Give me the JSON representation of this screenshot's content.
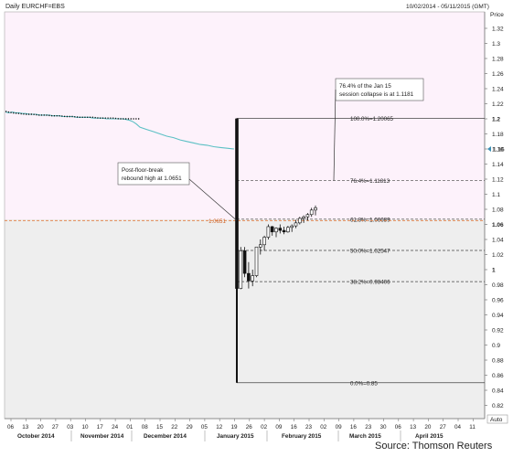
{
  "chart_data": {
    "type": "line",
    "title": "Daily EURCHF=EBS",
    "date_range": "10/02/2014 - 05/11/2015 (GMT)",
    "ylabel": "Price",
    "ylim": [
      0.8,
      1.34
    ],
    "y_ticks": [
      "1.32",
      "1.3",
      "1.28",
      "1.26",
      "1.24",
      "1.22",
      "1.2",
      "1.18",
      "1.16",
      "1.14",
      "1.12",
      "1.1",
      "1.08",
      "1.06",
      "1.04",
      "1.02",
      "1",
      "0.98",
      "0.96",
      "0.94",
      "0.92",
      "0.9",
      "0.88",
      "0.86",
      "0.84",
      "0.82"
    ],
    "bold_ticks": [
      "1.2",
      "1.06",
      "1"
    ],
    "x_day_ticks": [
      "06",
      "13",
      "20",
      "27",
      "03",
      "10",
      "17",
      "24",
      "01",
      "08",
      "15",
      "22",
      "29",
      "05",
      "12",
      "19",
      "26",
      "02",
      "09",
      "16",
      "23",
      "02",
      "09",
      "16",
      "23",
      "30",
      "06",
      "13",
      "20",
      "27",
      "04",
      "11"
    ],
    "x_months": [
      "October 2014",
      "November 2014",
      "December 2014",
      "January 2015",
      "February 2015",
      "March 2015",
      "April 2015"
    ],
    "auto_label": "Auto",
    "current_price_label": "1.16",
    "level_label": "1.0651",
    "fib_levels": [
      {
        "label": "100.0%=1.20065",
        "value": 1.20065
      },
      {
        "label": "76.4%=1.11813",
        "value": 1.11813
      },
      {
        "label": "61.8%=1.06689",
        "value": 1.06689
      },
      {
        "label": "50.0%=1.02547",
        "value": 1.02547
      },
      {
        "label": "38.2%=0.98406",
        "value": 0.98406
      },
      {
        "label": "0.0%=0.85",
        "value": 0.85
      }
    ],
    "annotations": [
      {
        "text": [
          "76.4% of the Jan 15",
          "session collapse is at 1.1181"
        ]
      },
      {
        "text": [
          "Post-floor-break",
          "rebound high at 1.0651"
        ]
      }
    ],
    "series": [
      {
        "name": "",
        "color": "#5bc0c4",
        "x": [
          0,
          0.5,
          1,
          1.5,
          2,
          2.5,
          3,
          3.5,
          4,
          4.5,
          5,
          5.5,
          6,
          6.5,
          7,
          7.5,
          8,
          8.5,
          9,
          9.5,
          10,
          10.5,
          11,
          11.5,
          12,
          12.5,
          13,
          13.5,
          14,
          14.5,
          15,
          15.5,
          16,
          16.5,
          17,
          17.5,
          18,
          18.5,
          19,
          19.5,
          20,
          21,
          22,
          23,
          24,
          25,
          26,
          27,
          28,
          29,
          30,
          31,
          32,
          33,
          34
        ],
        "y": [
          1.209,
          1.208,
          1.209,
          1.208,
          1.208,
          1.207,
          1.207,
          1.206,
          1.206,
          1.206,
          1.205,
          1.205,
          1.205,
          1.205,
          1.204,
          1.204,
          1.204,
          1.203,
          1.203,
          1.203,
          1.203,
          1.202,
          1.202,
          1.202,
          1.202,
          1.202,
          1.201,
          1.201,
          1.201,
          1.201,
          1.2,
          1.2,
          1.2,
          1.2,
          1.2,
          1.2,
          1.199,
          1.198,
          1.196,
          1.193,
          1.189,
          1.186,
          1.183,
          1.18,
          1.177,
          1.175,
          1.172,
          1.17,
          1.168,
          1.166,
          1.165,
          1.163,
          1.162,
          1.161,
          1.16
        ]
      },
      {
        "name": "",
        "color": "#111111",
        "style": "dotted",
        "x": [
          0,
          1,
          2,
          3,
          4,
          5,
          6,
          7,
          8,
          9,
          10,
          11,
          12,
          13,
          14,
          15,
          16,
          17,
          18,
          19,
          20
        ],
        "y": [
          1.21,
          1.208,
          1.207,
          1.206,
          1.206,
          1.205,
          1.205,
          1.204,
          1.204,
          1.203,
          1.203,
          1.202,
          1.202,
          1.202,
          1.201,
          1.201,
          1.201,
          1.2,
          1.2,
          1.2,
          1.2
        ]
      }
    ],
    "candles": [
      {
        "o": 1.2,
        "h": 1.2006,
        "l": 0.85,
        "c": 0.975
      },
      {
        "o": 0.975,
        "h": 1.03,
        "l": 0.974,
        "c": 1.025
      },
      {
        "o": 1.025,
        "h": 1.03,
        "l": 0.99,
        "c": 0.995
      },
      {
        "o": 0.995,
        "h": 1.01,
        "l": 0.975,
        "c": 0.985
      },
      {
        "o": 0.985,
        "h": 1.0,
        "l": 0.978,
        "c": 0.992
      },
      {
        "o": 0.992,
        "h": 1.03,
        "l": 0.99,
        "c": 1.03
      },
      {
        "o": 1.03,
        "h": 1.04,
        "l": 1.02,
        "c": 1.033
      },
      {
        "o": 1.033,
        "h": 1.045,
        "l": 1.025,
        "c": 1.043
      },
      {
        "o": 1.043,
        "h": 1.06,
        "l": 1.04,
        "c": 1.057
      },
      {
        "o": 1.057,
        "h": 1.058,
        "l": 1.045,
        "c": 1.05
      },
      {
        "o": 1.05,
        "h": 1.056,
        "l": 1.043,
        "c": 1.055
      },
      {
        "o": 1.055,
        "h": 1.06,
        "l": 1.048,
        "c": 1.052
      },
      {
        "o": 1.052,
        "h": 1.057,
        "l": 1.047,
        "c": 1.05
      },
      {
        "o": 1.05,
        "h": 1.058,
        "l": 1.049,
        "c": 1.056
      },
      {
        "o": 1.056,
        "h": 1.06,
        "l": 1.05,
        "c": 1.058
      },
      {
        "o": 1.058,
        "h": 1.066,
        "l": 1.055,
        "c": 1.062
      },
      {
        "o": 1.062,
        "h": 1.07,
        "l": 1.06,
        "c": 1.068
      },
      {
        "o": 1.068,
        "h": 1.072,
        "l": 1.062,
        "c": 1.07
      },
      {
        "o": 1.07,
        "h": 1.075,
        "l": 1.065,
        "c": 1.073
      },
      {
        "o": 1.073,
        "h": 1.082,
        "l": 1.07,
        "c": 1.079
      },
      {
        "o": 1.079,
        "h": 1.085,
        "l": 1.072,
        "c": 1.082
      }
    ],
    "source": "Source: Thomson Reuters"
  }
}
